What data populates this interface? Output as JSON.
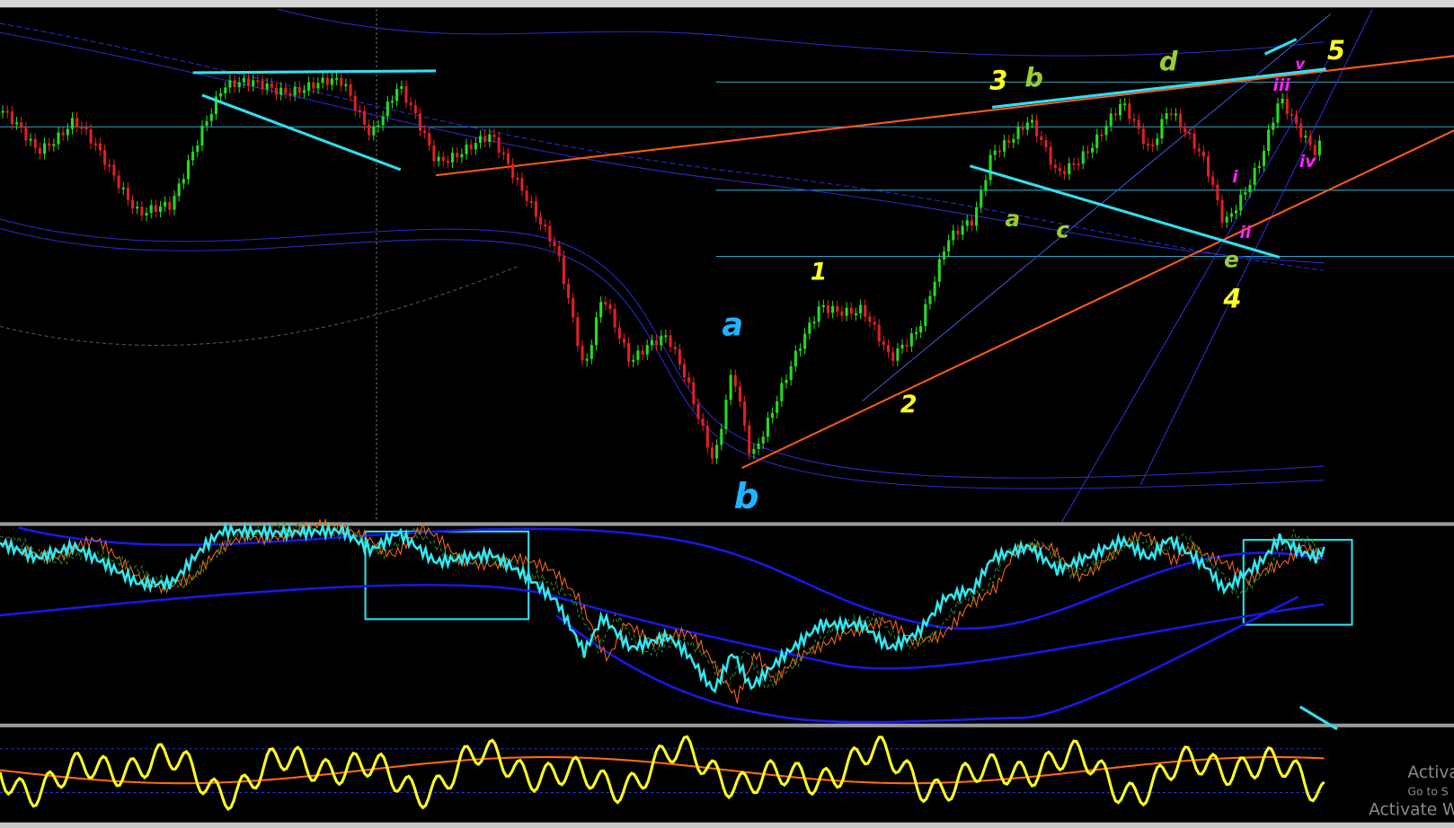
{
  "wave_labels": [
    "a",
    "b",
    "1",
    "2",
    "3",
    "4",
    "5",
    "b",
    "d",
    "a",
    "c",
    "e",
    "i",
    "ii",
    "iii",
    "iv",
    "v"
  ],
  "watermark": [
    "Activa",
    "Go to S",
    "Activate W"
  ]
}
